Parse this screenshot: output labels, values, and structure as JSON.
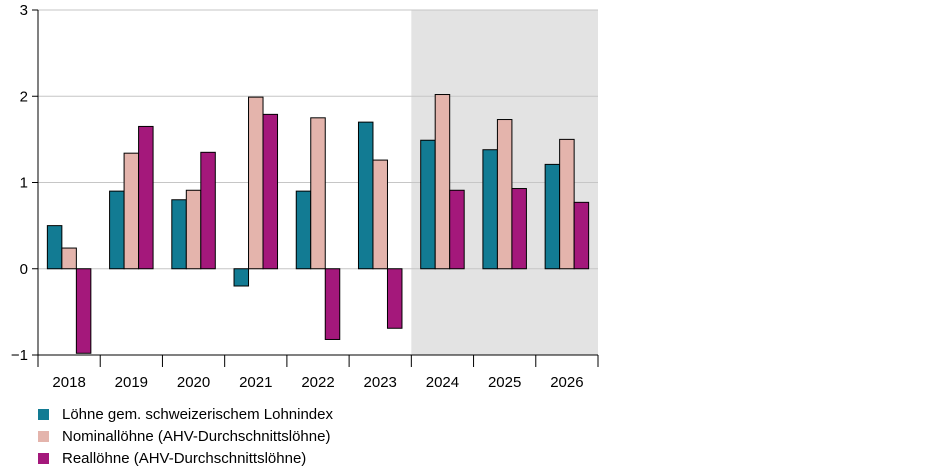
{
  "chart_data": {
    "type": "bar",
    "categories": [
      "2018",
      "2019",
      "2020",
      "2021",
      "2022",
      "2023",
      "2024",
      "2025",
      "2026"
    ],
    "series": [
      {
        "name": "Löhne gem. schweizerischem Lohnindex",
        "color": "#127b93",
        "values": [
          0.5,
          0.9,
          0.8,
          -0.2,
          0.9,
          1.7,
          1.49,
          1.38,
          1.21
        ]
      },
      {
        "name": "Nominallöhne (AHV-Durchschnittslöhne)",
        "color": "#e4b4ac",
        "values": [
          0.24,
          1.34,
          0.91,
          1.99,
          1.75,
          1.26,
          2.02,
          1.73,
          1.5
        ]
      },
      {
        "name": "Reallöhne (AHV-Durchschnittslöhne)",
        "color": "#a4187b",
        "values": [
          -0.98,
          1.65,
          1.35,
          1.79,
          -0.82,
          -0.69,
          0.91,
          0.93,
          0.77
        ]
      }
    ],
    "y_ticks": [
      "3",
      "2",
      "1",
      "0",
      "−1"
    ],
    "ylim": [
      -1,
      3
    ],
    "grid": true,
    "forecast_shading": {
      "categories": [
        "2024",
        "2025",
        "2026"
      ],
      "color": "#e3e3e3"
    },
    "legend_position": "bottom-left"
  }
}
